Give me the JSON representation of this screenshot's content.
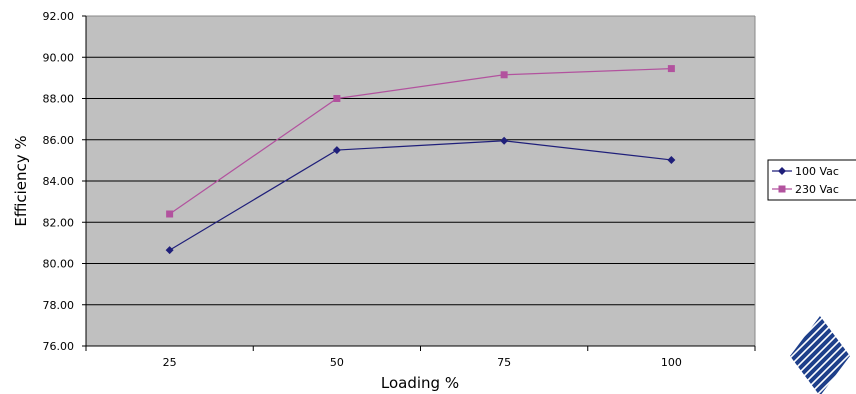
{
  "chart_data": {
    "type": "line",
    "title": "",
    "xlabel": "Loading %",
    "ylabel": "Efficiency %",
    "categories": [
      "25",
      "50",
      "75",
      "100"
    ],
    "ylim": [
      76,
      92
    ],
    "y_ticks": [
      "76.00",
      "78.00",
      "80.00",
      "82.00",
      "84.00",
      "86.00",
      "88.00",
      "90.00",
      "92.00"
    ],
    "grid": true,
    "legend_position": "right",
    "plot_background": "#c0c0c0",
    "series": [
      {
        "name": "100 Vac",
        "values": [
          80.65,
          85.5,
          85.95,
          85.02
        ],
        "color": "#1f1f7a",
        "marker": "diamond"
      },
      {
        "name": "230 Vac",
        "values": [
          82.4,
          88.0,
          89.15,
          89.45
        ],
        "color": "#b2529e",
        "marker": "square"
      }
    ]
  },
  "logo": {
    "icon": "company-logo-icon",
    "color": "#1e3f8a"
  }
}
